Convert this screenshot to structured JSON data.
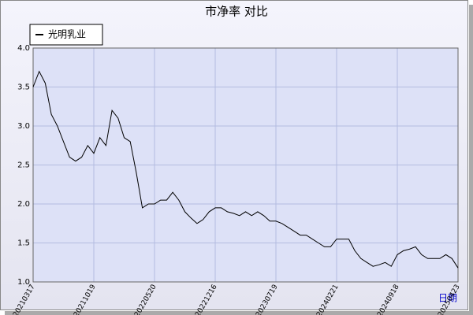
{
  "chart_data": {
    "type": "line",
    "title": "市净率  对比",
    "x_label": "日期",
    "categories": [
      "20210317",
      null,
      null,
      null,
      null,
      null,
      null,
      null,
      null,
      null,
      "20211019",
      null,
      null,
      null,
      null,
      null,
      null,
      null,
      null,
      null,
      "20220520",
      null,
      null,
      null,
      null,
      null,
      null,
      null,
      null,
      null,
      "20221216",
      null,
      null,
      null,
      null,
      null,
      null,
      null,
      null,
      null,
      "20230719",
      null,
      null,
      null,
      null,
      null,
      null,
      null,
      null,
      null,
      "20240221",
      null,
      null,
      null,
      null,
      null,
      null,
      null,
      null,
      null,
      "20240918",
      null,
      null,
      null,
      null,
      null,
      null,
      null,
      null,
      null,
      "20250423"
    ],
    "series": [
      {
        "name": "光明乳业",
        "color": "#000000",
        "values": [
          3.5,
          3.7,
          3.55,
          3.15,
          3.0,
          2.8,
          2.6,
          2.55,
          2.6,
          2.75,
          2.65,
          2.85,
          2.75,
          3.2,
          3.1,
          2.85,
          2.8,
          2.4,
          1.95,
          2.0,
          2.0,
          2.05,
          2.05,
          2.15,
          2.05,
          1.9,
          1.82,
          1.75,
          1.8,
          1.9,
          1.95,
          1.95,
          1.9,
          1.88,
          1.85,
          1.9,
          1.85,
          1.9,
          1.85,
          1.78,
          1.78,
          1.75,
          1.7,
          1.65,
          1.6,
          1.6,
          1.55,
          1.5,
          1.45,
          1.45,
          1.55,
          1.55,
          1.55,
          1.4,
          1.3,
          1.25,
          1.2,
          1.22,
          1.25,
          1.2,
          1.35,
          1.4,
          1.42,
          1.45,
          1.35,
          1.3,
          1.3,
          1.3,
          1.35,
          1.3,
          1.18
        ]
      }
    ],
    "ylim": [
      1,
      4
    ],
    "yticks": [
      {
        "value": 1,
        "label": "1.0"
      },
      1.5,
      {
        "value": 2,
        "label": "2.0"
      },
      2.5,
      {
        "value": 3,
        "label": "3.0"
      },
      3.5,
      {
        "value": 4,
        "label": "4.0"
      }
    ],
    "grid": true,
    "legend": "top-left"
  }
}
